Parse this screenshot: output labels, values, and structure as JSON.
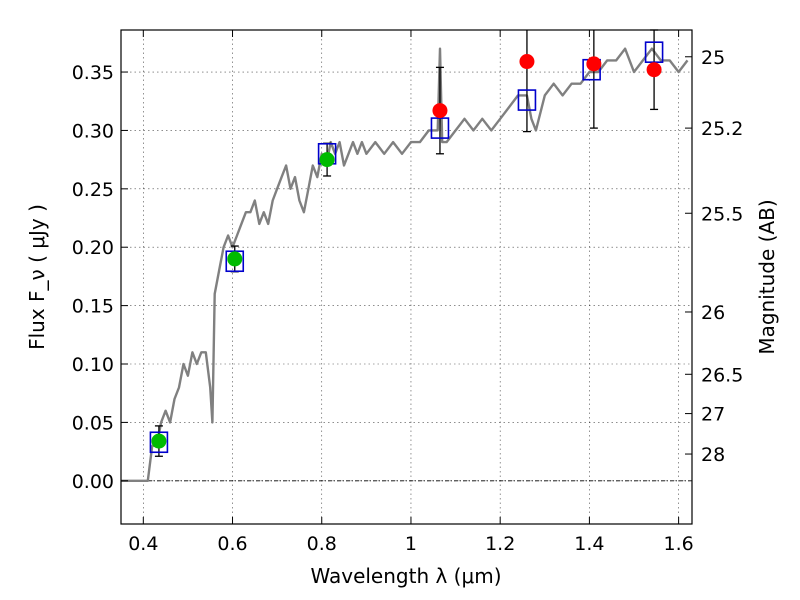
{
  "chart_data": {
    "type": "scatter",
    "xlabel": "Wavelength  λ (μm)",
    "ylabel": "Flux  F_ν ( μJy )",
    "y2label": "Magnitude (AB)",
    "xlim": [
      0.35,
      1.63
    ],
    "ylim": [
      -0.037,
      0.386
    ],
    "grid": true,
    "x_ticks": [
      0.4,
      0.6,
      0.8,
      1.0,
      1.2,
      1.4,
      1.6
    ],
    "x_tick_labels": [
      "0.4",
      "0.6",
      "0.8",
      "1",
      "1.2",
      "1.4",
      "1.6"
    ],
    "y_ticks": [
      0.0,
      0.05,
      0.1,
      0.15,
      0.2,
      0.25,
      0.3,
      0.35
    ],
    "y_tick_labels": [
      "0.00",
      "0.05",
      "0.10",
      "0.15",
      "0.20",
      "0.25",
      "0.30",
      "0.35"
    ],
    "mag_ticks": [
      25,
      25.2,
      25.5,
      26,
      26.5,
      27,
      28
    ],
    "mag_tick_labels": [
      "25",
      "25.2",
      "25.5",
      "26",
      "26.5",
      "27",
      "28"
    ],
    "zero_line": 0.0,
    "colors": {
      "spectrum": "#808080",
      "green_points": "#00bb00",
      "red_points": "#ff0000",
      "model_boxes": "#0000cc",
      "errorbars": "#000000"
    },
    "series": [
      {
        "kind": "spectrum-line",
        "x": [
          0.35,
          0.41,
          0.42,
          0.43,
          0.44,
          0.45,
          0.46,
          0.47,
          0.48,
          0.49,
          0.5,
          0.51,
          0.52,
          0.53,
          0.54,
          0.55,
          0.555,
          0.56,
          0.57,
          0.58,
          0.59,
          0.6,
          0.61,
          0.62,
          0.63,
          0.64,
          0.65,
          0.66,
          0.67,
          0.68,
          0.69,
          0.7,
          0.71,
          0.72,
          0.73,
          0.74,
          0.75,
          0.76,
          0.77,
          0.78,
          0.79,
          0.8,
          0.81,
          0.82,
          0.83,
          0.84,
          0.85,
          0.86,
          0.87,
          0.88,
          0.89,
          0.9,
          0.92,
          0.94,
          0.96,
          0.98,
          1.0,
          1.02,
          1.04,
          1.06,
          1.065,
          1.07,
          1.08,
          1.1,
          1.12,
          1.14,
          1.16,
          1.18,
          1.2,
          1.22,
          1.24,
          1.26,
          1.27,
          1.28,
          1.3,
          1.32,
          1.34,
          1.36,
          1.38,
          1.4,
          1.42,
          1.44,
          1.46,
          1.48,
          1.5,
          1.52,
          1.54,
          1.56,
          1.58,
          1.6,
          1.62
        ],
        "y": [
          0.0,
          0.0,
          0.03,
          0.03,
          0.05,
          0.06,
          0.05,
          0.07,
          0.08,
          0.1,
          0.09,
          0.11,
          0.1,
          0.11,
          0.11,
          0.08,
          0.05,
          0.16,
          0.18,
          0.2,
          0.21,
          0.2,
          0.21,
          0.22,
          0.23,
          0.23,
          0.24,
          0.22,
          0.23,
          0.22,
          0.24,
          0.25,
          0.26,
          0.27,
          0.25,
          0.26,
          0.24,
          0.23,
          0.25,
          0.27,
          0.26,
          0.28,
          0.27,
          0.29,
          0.28,
          0.29,
          0.27,
          0.28,
          0.29,
          0.28,
          0.29,
          0.28,
          0.29,
          0.28,
          0.29,
          0.28,
          0.29,
          0.29,
          0.3,
          0.3,
          0.37,
          0.29,
          0.29,
          0.3,
          0.31,
          0.3,
          0.31,
          0.3,
          0.31,
          0.32,
          0.33,
          0.33,
          0.31,
          0.3,
          0.33,
          0.34,
          0.33,
          0.34,
          0.34,
          0.35,
          0.35,
          0.36,
          0.36,
          0.37,
          0.35,
          0.36,
          0.37,
          0.36,
          0.36,
          0.35,
          0.36
        ]
      },
      {
        "kind": "green-points",
        "x": [
          0.435,
          0.605,
          0.812
        ],
        "y": [
          0.034,
          0.19,
          0.275
        ],
        "yerr": [
          0.013,
          0.011,
          0.014
        ]
      },
      {
        "kind": "red-points",
        "x": [
          1.065,
          1.26,
          1.41,
          1.545
        ],
        "y": [
          0.317,
          0.359,
          0.357,
          0.352
        ],
        "yerr": [
          0.037,
          0.06,
          0.055,
          0.034
        ]
      },
      {
        "kind": "model-boxes",
        "x": [
          0.435,
          0.605,
          0.812,
          1.065,
          1.26,
          1.405,
          1.545
        ],
        "y": [
          0.033,
          0.188,
          0.28,
          0.302,
          0.326,
          0.352,
          0.367
        ]
      }
    ]
  }
}
